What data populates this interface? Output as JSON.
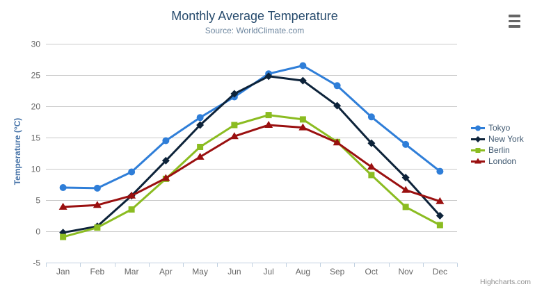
{
  "header": {
    "menu_tooltip": "chart context menu"
  },
  "chart_data": {
    "type": "line",
    "title": "Monthly Average Temperature",
    "subtitle": "Source: WorldClimate.com",
    "xlabel": "",
    "ylabel": "Temperature (°C)",
    "categories": [
      "Jan",
      "Feb",
      "Mar",
      "Apr",
      "May",
      "Jun",
      "Jul",
      "Aug",
      "Sep",
      "Oct",
      "Nov",
      "Dec"
    ],
    "ylim": [
      -5,
      30
    ],
    "yticks": [
      -5,
      0,
      5,
      10,
      15,
      20,
      25,
      30
    ],
    "grid": true,
    "legend_position": "right",
    "series": [
      {
        "name": "Tokyo",
        "color": "#2f7ed8",
        "marker": "circle",
        "values": [
          7.0,
          6.9,
          9.5,
          14.5,
          18.2,
          21.5,
          25.2,
          26.5,
          23.3,
          18.3,
          13.9,
          9.6
        ]
      },
      {
        "name": "New York",
        "color": "#0d233a",
        "marker": "diamond",
        "values": [
          -0.2,
          0.8,
          5.7,
          11.3,
          17.0,
          22.0,
          24.8,
          24.1,
          20.1,
          14.1,
          8.6,
          2.5
        ]
      },
      {
        "name": "Berlin",
        "color": "#8bbc21",
        "marker": "square",
        "values": [
          -0.9,
          0.6,
          3.5,
          8.4,
          13.5,
          17.0,
          18.6,
          17.9,
          14.3,
          9.0,
          3.9,
          1.0
        ]
      },
      {
        "name": "London",
        "color": "#9a1010",
        "marker": "triangle",
        "values": [
          3.9,
          4.2,
          5.7,
          8.5,
          11.9,
          15.2,
          17.0,
          16.6,
          14.2,
          10.3,
          6.6,
          4.8
        ]
      }
    ]
  },
  "colors": {
    "title": "#274b6d",
    "subtitle": "#6d869f",
    "axis_label": "#666666",
    "yaxis_title": "#4572a7",
    "grid_line": "#c8c8c8",
    "axis_line": "#c0d0e0",
    "legend_text": "#3e576f",
    "credits": "#909090",
    "menu_icon": "#666666"
  },
  "credits": {
    "text": "Highcharts.com"
  }
}
